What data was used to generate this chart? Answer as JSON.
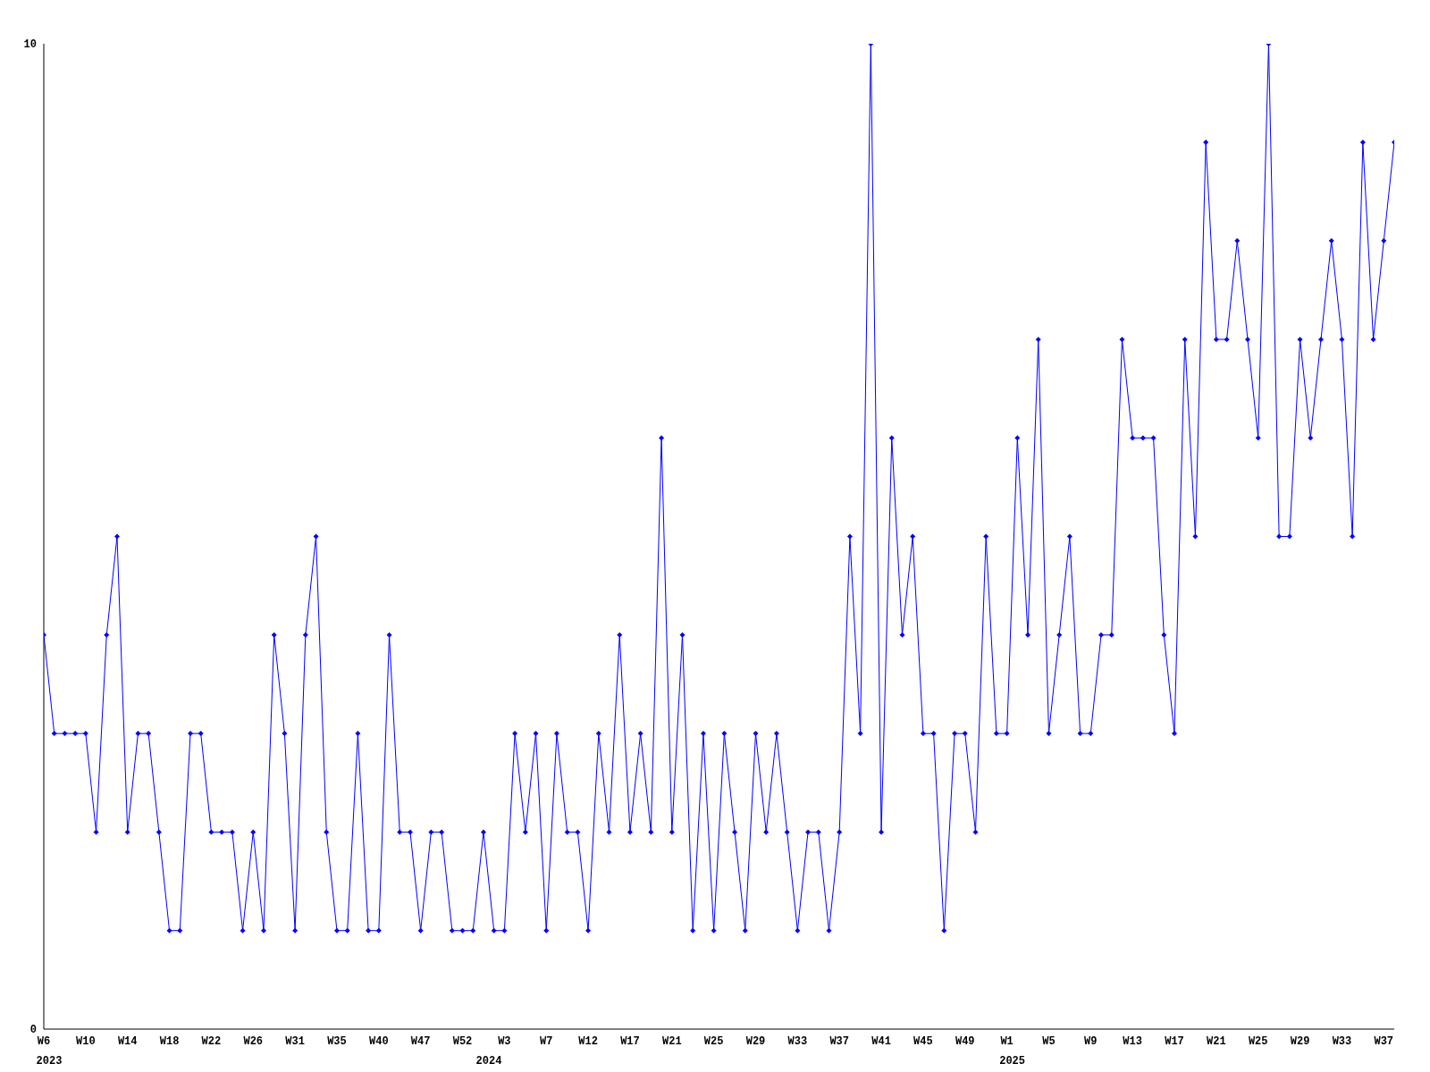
{
  "chart_data": {
    "type": "line",
    "categories": [
      "W6",
      null,
      null,
      null,
      "W10",
      null,
      null,
      null,
      "W14",
      null,
      null,
      null,
      "W18",
      null,
      null,
      null,
      "W22",
      null,
      null,
      null,
      "W26",
      null,
      null,
      null,
      "W31",
      null,
      null,
      null,
      "W35",
      null,
      null,
      null,
      "W40",
      null,
      null,
      null,
      "W47",
      null,
      null,
      null,
      "W52",
      null,
      null,
      null,
      "W3",
      null,
      null,
      null,
      "W7",
      null,
      null,
      null,
      "W12",
      null,
      null,
      null,
      "W17",
      null,
      null,
      null,
      "W21",
      null,
      null,
      null,
      "W25",
      null,
      null,
      null,
      "W29",
      null,
      null,
      null,
      "W33",
      null,
      null,
      null,
      "W37",
      null,
      null,
      null,
      "W41",
      null,
      null,
      null,
      "W45",
      null,
      null,
      null,
      "W49",
      null,
      null,
      null,
      "W1",
      null,
      null,
      null,
      "W5",
      null,
      null,
      null,
      "W9",
      null,
      null,
      null,
      "W13",
      null,
      null,
      null,
      "W17",
      null,
      null,
      null,
      "W21",
      null,
      null,
      null,
      "W25",
      null,
      null,
      null,
      "W29",
      null,
      null,
      null,
      "W33",
      null,
      null,
      null,
      "W37",
      null
    ],
    "series": [
      {
        "color": "#0000ff",
        "values": [
          4,
          3,
          3,
          3,
          3,
          2,
          4,
          5,
          2,
          3,
          3,
          2,
          1,
          1,
          3,
          3,
          2,
          2,
          2,
          1,
          2,
          1,
          4,
          3,
          1,
          4,
          5,
          2,
          1,
          1,
          3,
          1,
          1,
          4,
          2,
          2,
          1,
          2,
          2,
          1,
          1,
          1,
          2,
          1,
          1,
          3,
          2,
          3,
          1,
          3,
          2,
          2,
          1,
          3,
          2,
          4,
          2,
          3,
          2,
          6,
          2,
          4,
          1,
          3,
          1,
          3,
          2,
          1,
          3,
          2,
          3,
          2,
          1,
          2,
          2,
          1,
          2,
          5,
          3,
          10,
          2,
          6,
          4,
          5,
          3,
          3,
          1,
          3,
          3,
          2,
          5,
          3,
          3,
          6,
          4,
          7,
          3,
          4,
          5,
          3,
          3,
          4,
          4,
          7,
          6,
          6,
          6,
          4,
          3,
          7,
          5,
          9,
          7,
          7,
          8,
          7,
          6,
          10,
          5,
          5,
          7,
          6,
          7,
          8,
          7,
          5,
          9,
          7,
          8,
          9
        ]
      }
    ],
    "ylim": [
      0,
      10
    ],
    "yticks": [
      0,
      10
    ],
    "grid": false,
    "marker": "diamond",
    "line_style": "solid",
    "annotations": [
      "2023",
      "2024",
      "2025"
    ]
  }
}
